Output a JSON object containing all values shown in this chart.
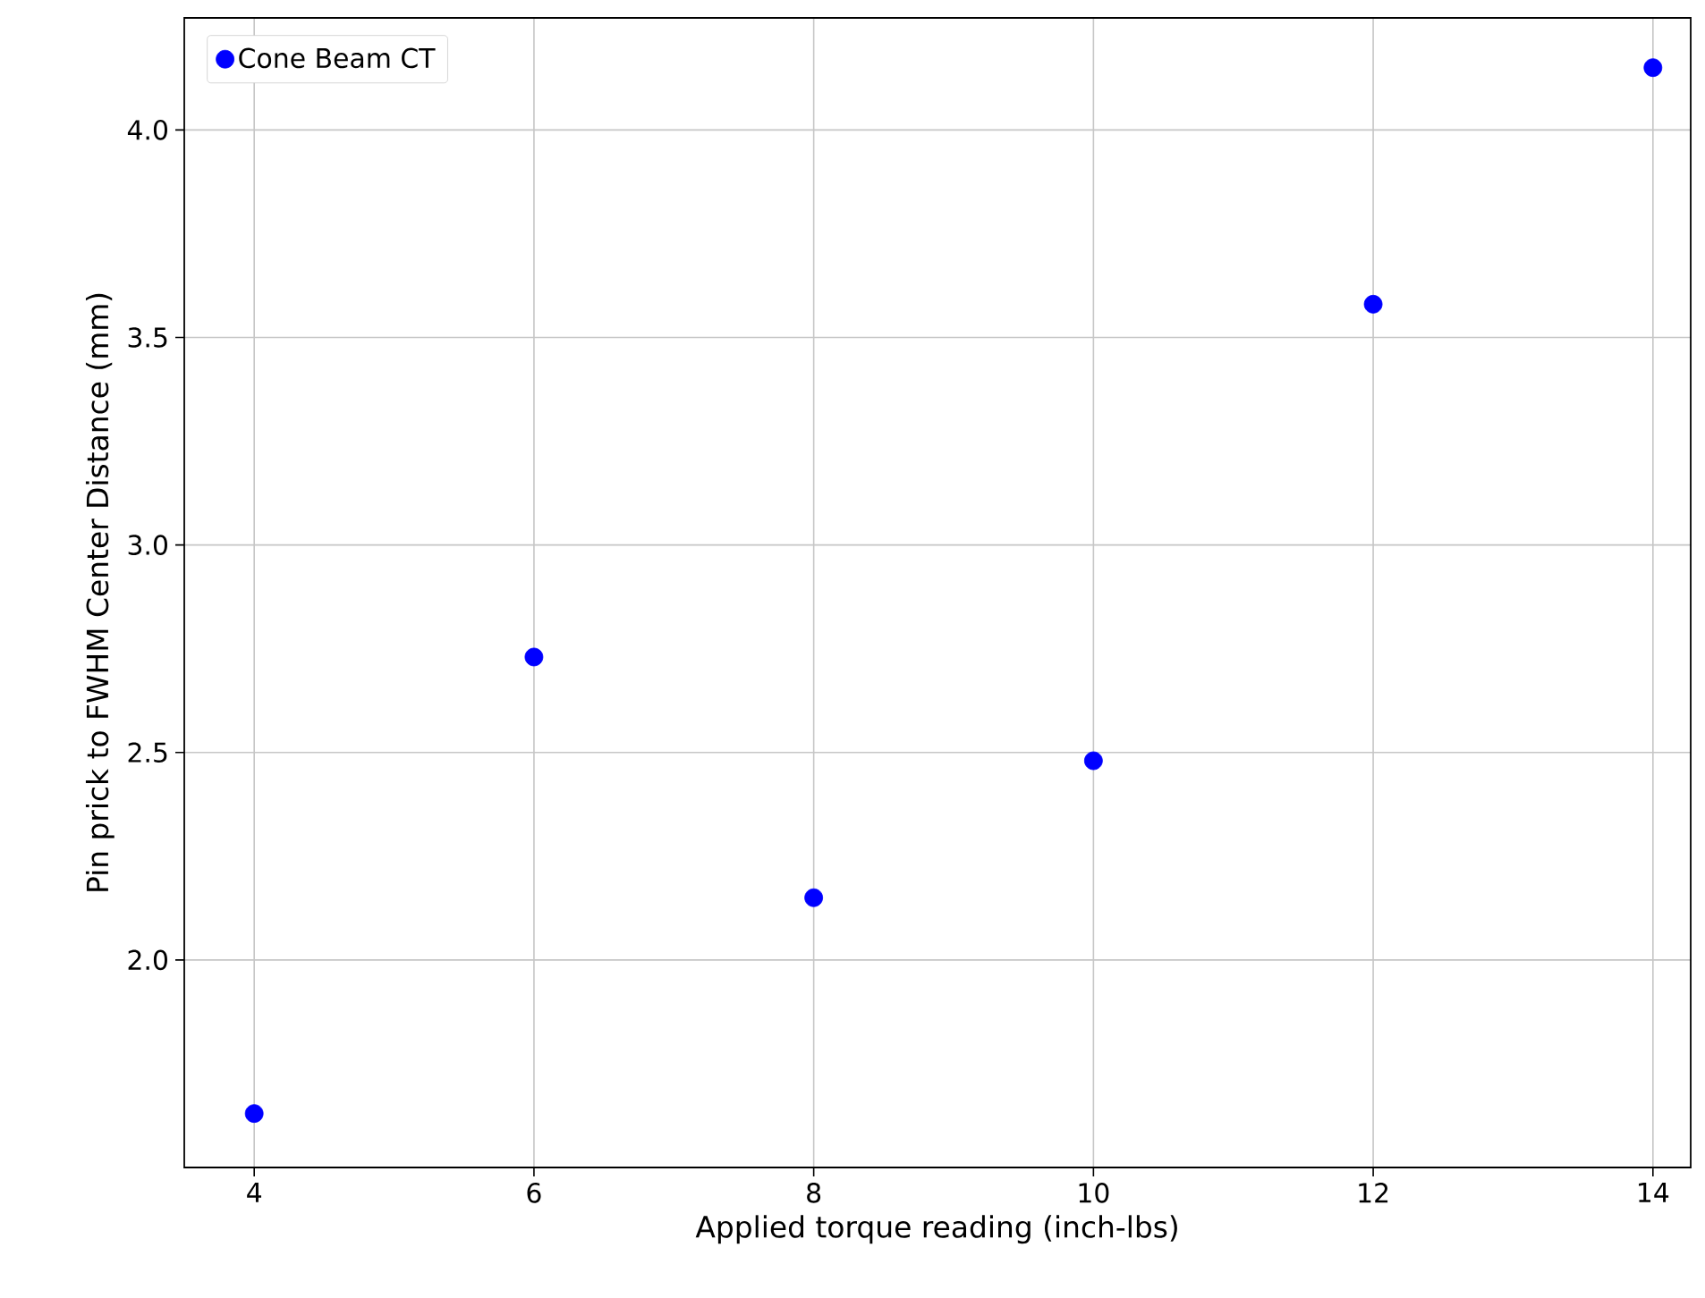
{
  "chart_data": {
    "type": "scatter",
    "xlabel": "Applied torque reading (inch-lbs)",
    "ylabel": "Pin prick to FWHM Center Distance (mm)",
    "x": [
      4,
      6,
      8,
      10,
      12,
      14
    ],
    "series": [
      {
        "name": "Cone Beam CT",
        "color": "#0000ff",
        "values": [
          1.63,
          2.73,
          2.15,
          2.48,
          3.58,
          4.15
        ]
      }
    ],
    "xlim": [
      3.5,
      14.27
    ],
    "ylim": [
      1.5,
      4.27
    ],
    "xticks": [
      4,
      6,
      8,
      10,
      12,
      14
    ],
    "yticks": [
      {
        "value": 2,
        "label": "2.0"
      },
      {
        "value": 2.5,
        "label": "2.5"
      },
      {
        "value": 3,
        "label": "3.0"
      },
      {
        "value": 3.5,
        "label": "3.5"
      },
      {
        "value": 4,
        "label": "4.0"
      }
    ],
    "grid": true,
    "legend": "top left",
    "marker": "circle"
  }
}
